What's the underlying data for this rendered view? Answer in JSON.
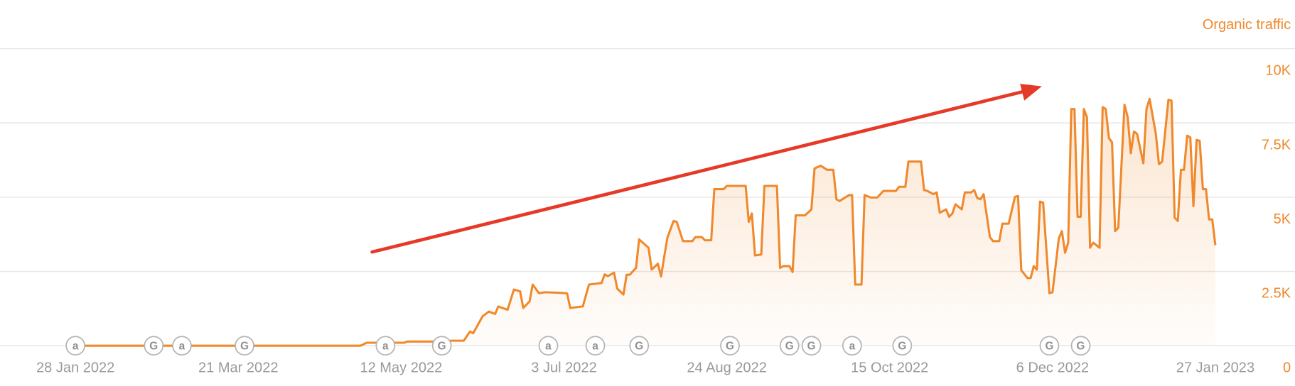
{
  "chart_data": {
    "type": "area-line",
    "y_label": "Organic traffic",
    "color": "#f0892b",
    "x": [
      "2022-01-28",
      "2022-04-29",
      "2022-05-01",
      "2022-05-13",
      "2022-05-14",
      "2022-05-23",
      "2022-05-28",
      "2022-06-01",
      "2022-06-03",
      "2022-06-04",
      "2022-06-07",
      "2022-06-09",
      "2022-06-11",
      "2022-06-12",
      "2022-06-15",
      "2022-06-17",
      "2022-06-19",
      "2022-06-20",
      "2022-06-22",
      "2022-06-23",
      "2022-06-25",
      "2022-06-27",
      "2022-07-02",
      "2022-07-04",
      "2022-07-05",
      "2022-07-09",
      "2022-07-11",
      "2022-07-15",
      "2022-07-16",
      "2022-07-17",
      "2022-07-19",
      "2022-07-20",
      "2022-07-22",
      "2022-07-23",
      "2022-07-24",
      "2022-07-26",
      "2022-07-27",
      "2022-07-30",
      "2022-07-31",
      "2022-08-02",
      "2022-08-03",
      "2022-08-04",
      "2022-08-05",
      "2022-08-07",
      "2022-08-08",
      "2022-08-10",
      "2022-08-13",
      "2022-08-14",
      "2022-08-16",
      "2022-08-17",
      "2022-08-19",
      "2022-08-20",
      "2022-08-23",
      "2022-08-24",
      "2022-08-30",
      "2022-08-31",
      "2022-09-01",
      "2022-09-02",
      "2022-09-04",
      "2022-09-05",
      "2022-09-09",
      "2022-09-10",
      "2022-09-11",
      "2022-09-13",
      "2022-09-14",
      "2022-09-15",
      "2022-09-18",
      "2022-09-20",
      "2022-09-21",
      "2022-09-23",
      "2022-09-25",
      "2022-09-27",
      "2022-09-28",
      "2022-09-29",
      "2022-10-02",
      "2022-10-03",
      "2022-10-04",
      "2022-10-06",
      "2022-10-07",
      "2022-10-09",
      "2022-10-11",
      "2022-10-13",
      "2022-10-17",
      "2022-10-18",
      "2022-10-20",
      "2022-10-21",
      "2022-10-25",
      "2022-10-26",
      "2022-10-27",
      "2022-10-29",
      "2022-10-30",
      "2022-10-31",
      "2022-11-02",
      "2022-11-03",
      "2022-11-04",
      "2022-11-05",
      "2022-11-07",
      "2022-11-08",
      "2022-11-10",
      "2022-11-11",
      "2022-11-12",
      "2022-11-13",
      "2022-11-14",
      "2022-11-16",
      "2022-11-17",
      "2022-11-19",
      "2022-11-20",
      "2022-11-22",
      "2022-11-24",
      "2022-11-25",
      "2022-11-26",
      "2022-11-28",
      "2022-11-29",
      "2022-11-30",
      "2022-12-01",
      "2022-12-02",
      "2022-12-03",
      "2022-12-05",
      "2022-12-06",
      "2022-12-08",
      "2022-12-09",
      "2022-12-10",
      "2022-12-11",
      "2022-12-12",
      "2022-12-13",
      "2022-12-14",
      "2022-12-15",
      "2022-12-16",
      "2022-12-17",
      "2022-12-18",
      "2022-12-19",
      "2022-12-21",
      "2022-12-22",
      "2022-12-23",
      "2022-12-24",
      "2022-12-25",
      "2022-12-26",
      "2022-12-27",
      "2022-12-29",
      "2022-12-30",
      "2022-12-31",
      "2023-01-01",
      "2023-01-02",
      "2023-01-04",
      "2023-01-05",
      "2023-01-06",
      "2023-01-08",
      "2023-01-09",
      "2023-01-10",
      "2023-01-12",
      "2023-01-13",
      "2023-01-14",
      "2023-01-15",
      "2023-01-16",
      "2023-01-17",
      "2023-01-18",
      "2023-01-19",
      "2023-01-20",
      "2023-01-21",
      "2023-01-22",
      "2023-01-23",
      "2023-01-24",
      "2023-01-25",
      "2023-01-26",
      "2023-01-27"
    ],
    "values": [
      0,
      0,
      100,
      100,
      140,
      140,
      170,
      170,
      480,
      420,
      990,
      1150,
      1070,
      1320,
      1210,
      1890,
      1830,
      1270,
      1490,
      2060,
      1770,
      1800,
      1780,
      1760,
      1270,
      1320,
      2060,
      2110,
      2400,
      2340,
      2460,
      1920,
      1720,
      2390,
      2390,
      2620,
      3580,
      3300,
      2560,
      2760,
      2330,
      2990,
      3630,
      4200,
      4170,
      3520,
      3520,
      3660,
      3660,
      3550,
      3550,
      5270,
      5270,
      5380,
      5380,
      4170,
      4450,
      3040,
      3070,
      5380,
      5380,
      2620,
      2680,
      2680,
      2480,
      4390,
      4390,
      4590,
      5970,
      6060,
      5920,
      5920,
      4930,
      4870,
      5070,
      5070,
      2060,
      2060,
      5070,
      4990,
      4990,
      5210,
      5210,
      5350,
      5350,
      6200,
      6200,
      5240,
      5210,
      5100,
      5160,
      4480,
      4590,
      4340,
      4450,
      4760,
      4590,
      5160,
      5160,
      5240,
      4970,
      4930,
      5100,
      3660,
      3520,
      3520,
      4110,
      4110,
      5010,
      5040,
      2540,
      2280,
      2280,
      2680,
      2560,
      4850,
      4820,
      1770,
      1800,
      3610,
      3860,
      3130,
      3470,
      7970,
      7970,
      4340,
      4340,
      7970,
      7690,
      3300,
      3470,
      3300,
      8030,
      7970,
      6990,
      6850,
      3860,
      3970,
      8110,
      7690,
      6480,
      7210,
      7130,
      6140,
      7970,
      8310,
      7130,
      6110,
      6200,
      8280,
      8250,
      4310,
      4200,
      5920,
      5920,
      7070,
      7010,
      4700,
      6930,
      6900,
      5270,
      5270,
      4250,
      4250,
      3380
    ],
    "xlim": [
      "2022-01-28",
      "2023-01-27"
    ],
    "xticks": [
      {
        "value": "2022-01-28",
        "label": "28 Jan 2022"
      },
      {
        "value": "2022-03-21",
        "label": "21 Mar 2022"
      },
      {
        "value": "2022-05-12",
        "label": "12 May 2022"
      },
      {
        "value": "2022-07-03",
        "label": "3 Jul 2022"
      },
      {
        "value": "2022-08-24",
        "label": "24 Aug 2022"
      },
      {
        "value": "2022-10-15",
        "label": "15 Oct 2022"
      },
      {
        "value": "2022-12-06",
        "label": "6 Dec 2022"
      },
      {
        "value": "2023-01-27",
        "label": "27 Jan 2023"
      }
    ],
    "ylim": [
      0,
      10000
    ],
    "yticks": [
      0,
      {
        "value": 2500,
        "label": "2.5K"
      },
      {
        "value": 5000,
        "label": "5K"
      },
      {
        "value": 7500,
        "label": "7.5K"
      },
      {
        "value": 10000,
        "label": "10K"
      }
    ],
    "grid": true,
    "annotations": [
      {
        "x": "2022-01-28",
        "label": "a"
      },
      {
        "x": "2022-02-22",
        "label": "G"
      },
      {
        "x": "2022-03-03",
        "label": "a"
      },
      {
        "x": "2022-03-23",
        "label": "G"
      },
      {
        "x": "2022-05-07",
        "label": "a"
      },
      {
        "x": "2022-05-25",
        "label": "G"
      },
      {
        "x": "2022-06-28",
        "label": "a"
      },
      {
        "x": "2022-07-13",
        "label": "a"
      },
      {
        "x": "2022-07-27",
        "label": "G"
      },
      {
        "x": "2022-08-25",
        "label": "G"
      },
      {
        "x": "2022-09-13",
        "label": "G"
      },
      {
        "x": "2022-09-20",
        "label": "G"
      },
      {
        "x": "2022-10-03",
        "label": "a"
      },
      {
        "x": "2022-10-19",
        "label": "G"
      },
      {
        "x": "2022-12-05",
        "label": "G"
      },
      {
        "x": "2022-12-15",
        "label": "G"
      }
    ]
  }
}
